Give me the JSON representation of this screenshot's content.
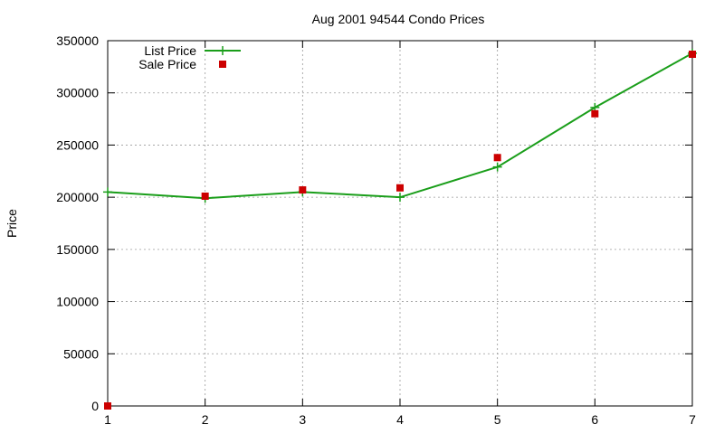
{
  "chart_data": {
    "type": "line",
    "title": "Aug 2001 94544 Condo Prices",
    "xlabel": "",
    "ylabel": "Price",
    "xlim": [
      1,
      7
    ],
    "ylim": [
      0,
      350000
    ],
    "x_ticks": [
      1,
      2,
      3,
      4,
      5,
      6,
      7
    ],
    "y_ticks": [
      0,
      50000,
      100000,
      150000,
      200000,
      250000,
      300000,
      350000
    ],
    "grid": true,
    "legend_position": "top-left",
    "series": [
      {
        "name": "List Price",
        "style": "line-plus",
        "color": "#1a9e1a",
        "x": [
          1,
          2,
          3,
          4,
          5,
          6,
          7
        ],
        "y": [
          205000,
          199000,
          205000,
          200000,
          229000,
          286000,
          338000
        ]
      },
      {
        "name": "Sale Price",
        "style": "square",
        "color": "#cc0000",
        "x": [
          1,
          2,
          3,
          4,
          5,
          6,
          7
        ],
        "y": [
          0,
          201000,
          207000,
          209000,
          238000,
          280000,
          337000
        ]
      }
    ]
  }
}
